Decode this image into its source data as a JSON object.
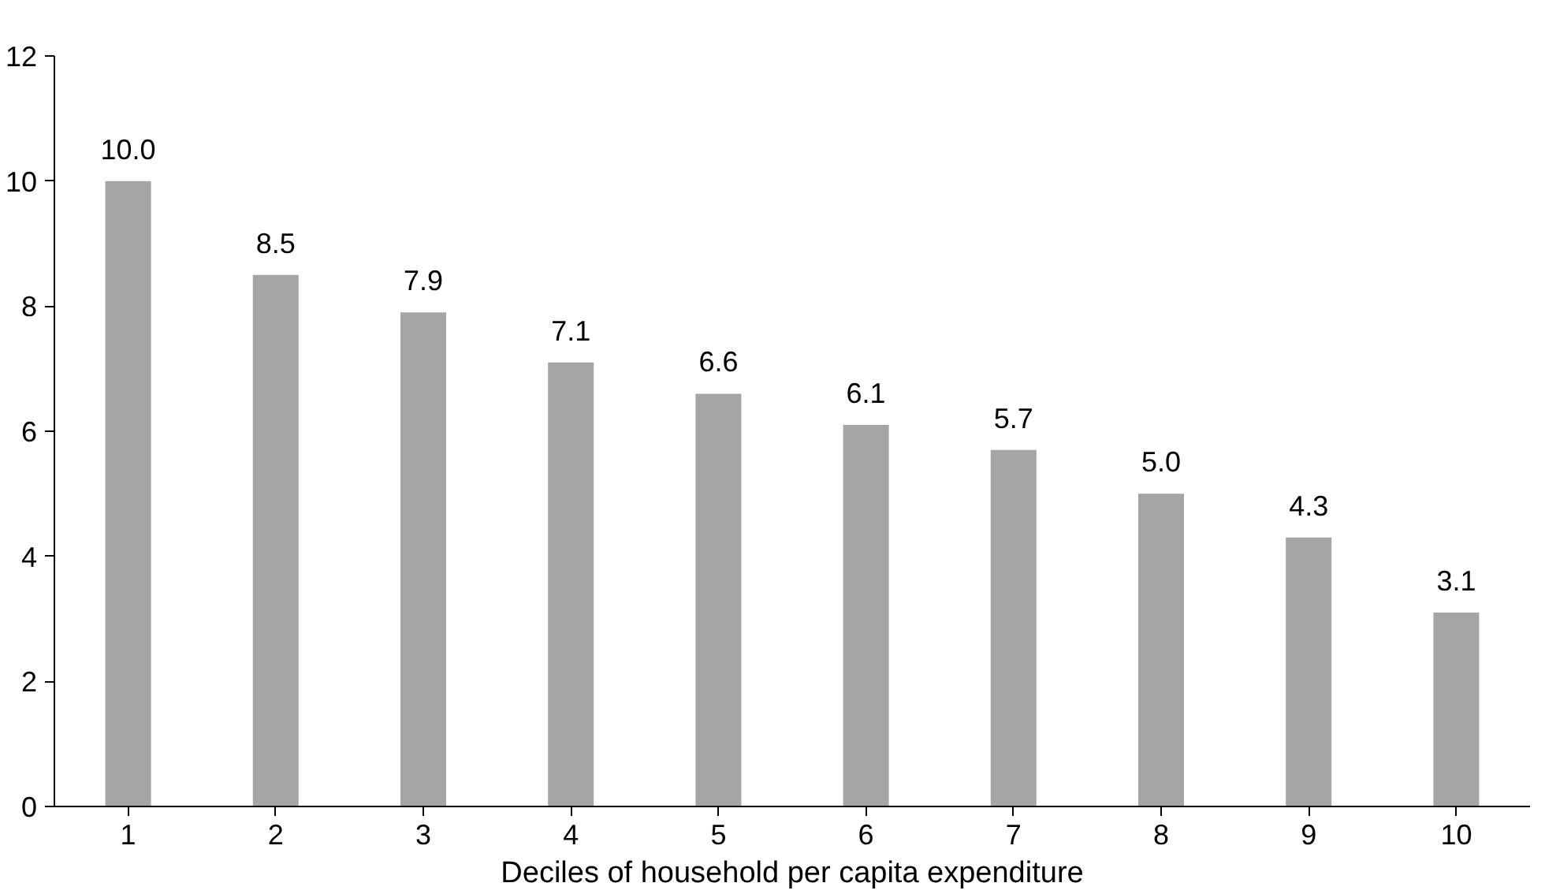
{
  "chart_data": {
    "type": "bar",
    "xlabel": "Deciles of household per capita expenditure",
    "categories": [
      "1",
      "2",
      "3",
      "4",
      "5",
      "6",
      "7",
      "8",
      "9",
      "10"
    ],
    "values": [
      10.0,
      8.5,
      7.9,
      7.1,
      6.6,
      6.1,
      5.7,
      5.0,
      4.3,
      3.1
    ],
    "value_labels": [
      "10.0",
      "8.5",
      "7.9",
      "7.1",
      "6.6",
      "6.1",
      "5.7",
      "5.0",
      "4.3",
      "3.1"
    ],
    "color": "#a5a5a5",
    "ylim": [
      0,
      12
    ],
    "yticks": [
      0,
      2,
      4,
      6,
      8,
      10,
      12
    ],
    "grid": false
  }
}
